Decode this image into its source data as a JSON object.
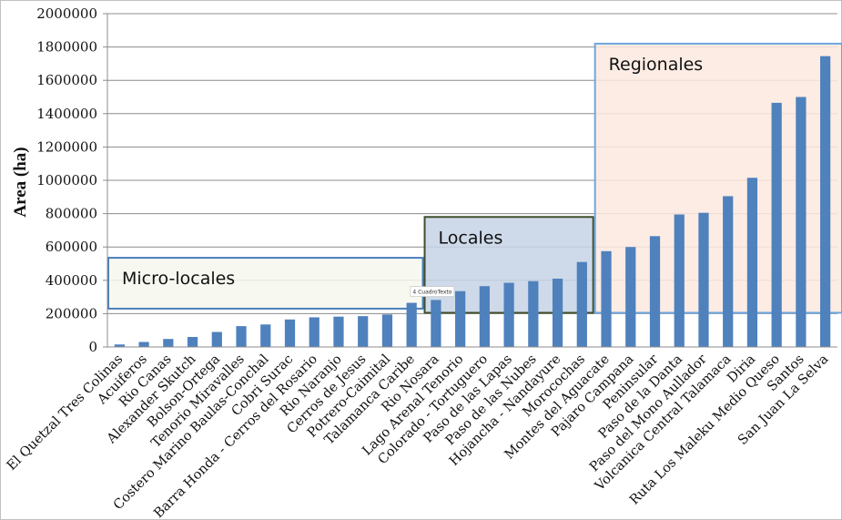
{
  "chart_data": {
    "type": "bar",
    "ylabel": "Area (ha)",
    "ylim": [
      0,
      2000000
    ],
    "yticks": [
      0,
      200000,
      400000,
      600000,
      800000,
      1000000,
      1200000,
      1400000,
      1600000,
      1800000,
      2000000
    ],
    "grid": true,
    "categories": [
      "El Quetzal Tres Colinas",
      "Acuiferos",
      "Rio Canas",
      "Alexander Skutch",
      "Bolson-Ortega",
      "Tenorio Miravalles",
      "Costero Marino Baulas-Conchal",
      "Cobri Surac",
      "Barra Honda - Cerros del Rosario",
      "Rio Naranjo",
      "Cerros de Jesus",
      "Potrero-Caimital",
      "Talamanca Caribe",
      "Rio Nosara",
      "Lago Arenal Tenorio",
      "Colorado - Tortuguero",
      "Paso de las Lapas",
      "Paso de las Nubes",
      "Hojancha - Nandayure",
      "Morocochas",
      "Montes del Aguacate",
      "Pajaro Campana",
      "Peninsular",
      "Paso de la Danta",
      "Paso del Mono Aullador",
      "Volcanica Central Talamaca",
      "Diria",
      "Ruta Los Maleku Medio Queso",
      "Santos",
      "San Juan La Selva"
    ],
    "series": [
      {
        "values": [
          15000,
          30000,
          48000,
          60000,
          90000,
          125000,
          135000,
          165000,
          178000,
          182000,
          185000,
          195000,
          265000,
          282000,
          335000,
          365000,
          385000,
          395000,
          410000,
          510000,
          575000,
          600000,
          665000,
          795000,
          805000,
          905000,
          1015000,
          1465000,
          1500000,
          1745000
        ],
        "color": "#4f81bd"
      }
    ],
    "groups": [
      {
        "label": "Micro-locales",
        "range": [
          0,
          12
        ],
        "y_range": [
          230000,
          535000
        ],
        "fill": "#f6f8ee",
        "border": "#4a7ebb"
      },
      {
        "label": "Locales",
        "range": [
          13,
          19
        ],
        "y_range": [
          205000,
          780000
        ],
        "fill": "#c5d3e5",
        "border": "#3f4f2a"
      },
      {
        "label": "Regionales",
        "range": [
          20,
          29
        ],
        "y_range": [
          205000,
          1820000
        ],
        "fill": "#fbe9df",
        "border": "#6ea6e0"
      }
    ],
    "annotations": [
      {
        "text": "4 CuadroTexto",
        "category_index": 13,
        "y": 330000
      }
    ]
  }
}
